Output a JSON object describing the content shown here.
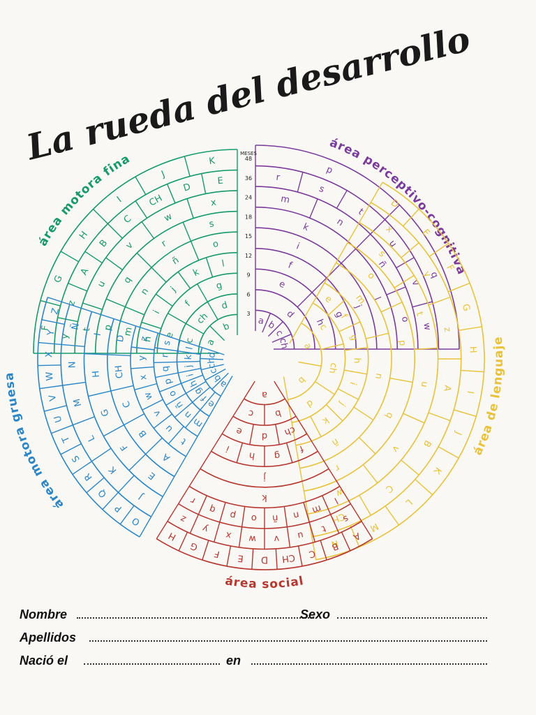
{
  "title": "La rueda del desarrollo",
  "colors": {
    "fina": "#159a6a",
    "perceptivo": "#7b3a9c",
    "lenguaje": "#e9c23a",
    "social": "#b7362f",
    "gruesa": "#2a86c9",
    "paper": "#f9f8f4"
  },
  "months_label": "MESES",
  "month_ticks": [
    "3",
    "6",
    "9",
    "12",
    "15",
    "18",
    "24",
    "36",
    "48"
  ],
  "areas": {
    "fina": {
      "label": "área motora fina",
      "rows": [
        [
          "a",
          "b"
        ],
        [
          "c",
          "ch",
          "d"
        ],
        [
          "e",
          "f",
          "g"
        ],
        [
          "h",
          "i",
          "j",
          "k",
          "l"
        ],
        [
          "m",
          "n",
          "ñ",
          "o"
        ],
        [
          "p",
          "q",
          "r",
          "s"
        ],
        [
          "t",
          "u",
          "v",
          "w",
          "x"
        ],
        [
          "y",
          "z",
          "A",
          "B",
          "C",
          "CH",
          "D",
          "E"
        ],
        [
          "F",
          "G",
          "H",
          "I",
          "J",
          "K"
        ]
      ]
    },
    "perceptivo": {
      "label": "área perceptivo-cognitiva",
      "rows": [
        [
          "a",
          "b",
          "c",
          "ch"
        ],
        [
          "d"
        ],
        [
          "e",
          "h"
        ],
        [
          "f",
          "g"
        ],
        [
          "i",
          "j"
        ],
        [
          "k",
          "l"
        ],
        [
          "m",
          "n",
          "ñ",
          "o"
        ],
        [
          "r",
          "s",
          "t",
          "u",
          "v",
          "w"
        ],
        [
          "p",
          "q"
        ]
      ]
    },
    "lenguaje": {
      "label": "área de lenguaje",
      "rows": [
        [
          "a",
          "b"
        ],
        [
          "c",
          "ch",
          "d"
        ],
        [
          "e",
          "f",
          "g",
          "h",
          "i",
          "j",
          "k",
          "l"
        ],
        [
          "m",
          "n",
          "ñ"
        ],
        [
          "o",
          "p",
          "q",
          "r"
        ],
        [
          "s",
          "t",
          "u",
          "v",
          "w"
        ],
        [
          "x",
          "y",
          "z",
          "A",
          "B",
          "C",
          "CH"
        ],
        [
          "D",
          "E",
          "F",
          "G",
          "H",
          "I",
          "J",
          "K",
          "L",
          "M",
          "N"
        ]
      ]
    },
    "social": {
      "label": "área social",
      "rows": [
        [
          "a"
        ],
        [
          "b",
          "c"
        ],
        [
          "ch",
          "d",
          "e"
        ],
        [
          "f",
          "g",
          "h",
          "i"
        ],
        [
          "j"
        ],
        [
          "k"
        ],
        [
          "l",
          "m",
          "n",
          "ñ",
          "o",
          "p",
          "q",
          "r"
        ],
        [
          "s",
          "t",
          "u",
          "v",
          "w",
          "x",
          "y",
          "z"
        ],
        [
          "A",
          "B",
          "C",
          "CH",
          "D",
          "E",
          "F",
          "G",
          "H"
        ]
      ]
    },
    "gruesa": {
      "label": "área motora gruesa",
      "rows": [
        [
          "a",
          "b",
          "c",
          "ch",
          "d"
        ],
        [
          "e",
          "f",
          "g",
          "h",
          "i",
          "j",
          "k",
          "l"
        ],
        [
          "m",
          "n",
          "ñ",
          "o",
          "p",
          "q",
          "r",
          "s"
        ],
        [
          "t",
          "u",
          "v",
          "w",
          "x",
          "y",
          "z"
        ],
        [
          "A",
          "B",
          "C",
          "CH",
          "D"
        ],
        [
          "E",
          "F",
          "G",
          "H",
          "I"
        ],
        [
          "J",
          "K",
          "L",
          "M",
          "N",
          "Ñ"
        ],
        [
          "O",
          "P",
          "Q",
          "R",
          "S",
          "T",
          "U",
          "V",
          "W",
          "X",
          "Y",
          "Z"
        ]
      ]
    }
  },
  "form": {
    "name_label": "Nombre",
    "sex_label": "Sexo",
    "surname_label": "Apellidos",
    "born_label": "Nació el",
    "in_label": "en"
  }
}
